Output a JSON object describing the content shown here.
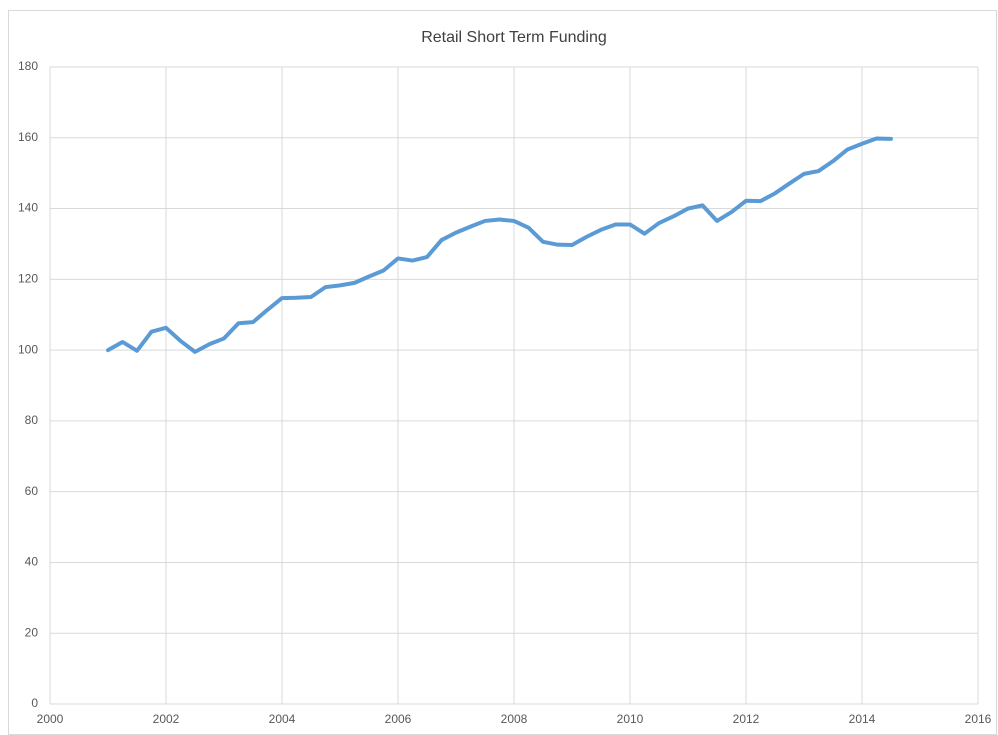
{
  "chart_data": {
    "type": "line",
    "title": "Retail Short Term Funding",
    "x": [
      2001,
      2001.25,
      2001.5,
      2001.75,
      2002,
      2002.25,
      2002.5,
      2002.75,
      2003,
      2003.25,
      2003.5,
      2003.75,
      2004,
      2004.25,
      2004.5,
      2004.75,
      2005,
      2005.25,
      2005.5,
      2005.75,
      2006,
      2006.25,
      2006.5,
      2006.75,
      2007,
      2007.25,
      2007.5,
      2007.75,
      2008,
      2008.25,
      2008.5,
      2008.75,
      2009,
      2009.25,
      2009.5,
      2009.75,
      2010,
      2010.25,
      2010.5,
      2010.75,
      2011,
      2011.25,
      2011.5,
      2011.75,
      2012,
      2012.25,
      2012.5,
      2012.75,
      2013,
      2013.25,
      2013.5,
      2013.75,
      2014,
      2014.25,
      2014.5
    ],
    "series": [
      {
        "color": "#5b9bd5",
        "values": [
          100,
          102.3,
          99.8,
          105.2,
          106.3,
          102.6,
          99.5,
          101.7,
          103.3,
          107.6,
          107.9,
          111.4,
          114.7,
          114.8,
          115,
          117.8,
          118.3,
          119,
          120.8,
          122.5,
          125.9,
          125.3,
          126.3,
          131.1,
          133.2,
          134.9,
          136.5,
          136.9,
          136.5,
          134.6,
          130.6,
          129.8,
          129.7,
          132,
          134,
          135.5,
          135.5,
          132.9,
          135.9,
          137.8,
          140,
          140.9,
          136.5,
          139,
          142.2,
          142.1,
          144.3,
          147.1,
          149.8,
          150.6,
          153.4,
          156.7,
          158.3,
          159.8,
          159.7
        ]
      }
    ],
    "xlim": [
      2000,
      2016
    ],
    "xticks": [
      2000,
      2002,
      2004,
      2006,
      2008,
      2010,
      2012,
      2014,
      2016
    ],
    "ylim": [
      0,
      180
    ],
    "yticks": [
      0,
      20,
      40,
      60,
      80,
      100,
      120,
      140,
      160,
      180
    ],
    "grid": true
  }
}
